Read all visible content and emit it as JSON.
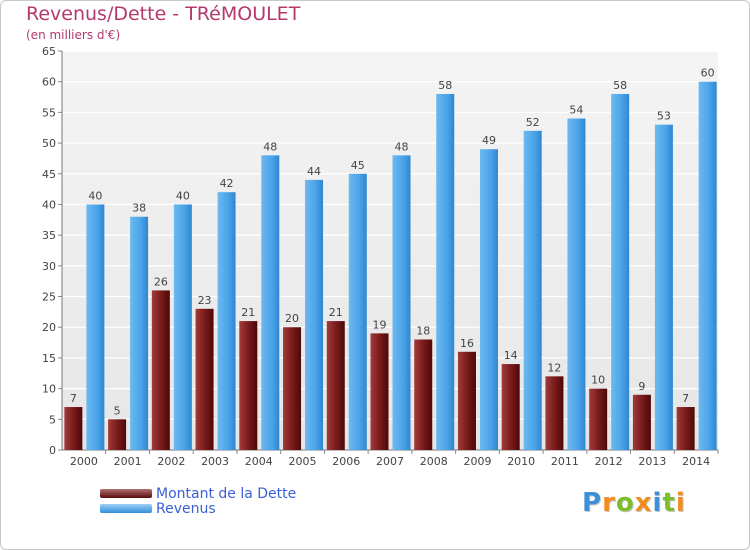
{
  "chart_data": {
    "type": "bar",
    "title": "Revenus/Dette - TRéMOULET",
    "subtitle": "(en milliers d'€)",
    "categories": [
      "2000",
      "2001",
      "2002",
      "2003",
      "2004",
      "2005",
      "2006",
      "2007",
      "2008",
      "2009",
      "2010",
      "2011",
      "2012",
      "2013",
      "2014"
    ],
    "series": [
      {
        "name": "Montant de la Dette",
        "color": "#7a1c1c",
        "values": [
          7,
          5,
          26,
          23,
          21,
          20,
          21,
          19,
          18,
          16,
          14,
          12,
          10,
          9,
          7
        ]
      },
      {
        "name": "Revenus",
        "color": "#4aa3e8",
        "values": [
          40,
          38,
          40,
          42,
          48,
          44,
          45,
          48,
          58,
          49,
          52,
          54,
          58,
          53,
          60
        ]
      }
    ],
    "ylim": [
      0,
      65
    ],
    "yticks": [
      0,
      5,
      10,
      15,
      20,
      25,
      30,
      35,
      40,
      45,
      50,
      55,
      60,
      65
    ],
    "grid": true,
    "legend_position": "bottom-left"
  },
  "logo": {
    "letters": [
      "P",
      "r",
      "o",
      "x",
      "i",
      "t",
      "i"
    ],
    "colors": [
      "#3d8fd6",
      "#f28c1e",
      "#7cbf2a",
      "#f28c1e",
      "#3d8fd6",
      "#7cbf2a",
      "#f28c1e"
    ]
  }
}
